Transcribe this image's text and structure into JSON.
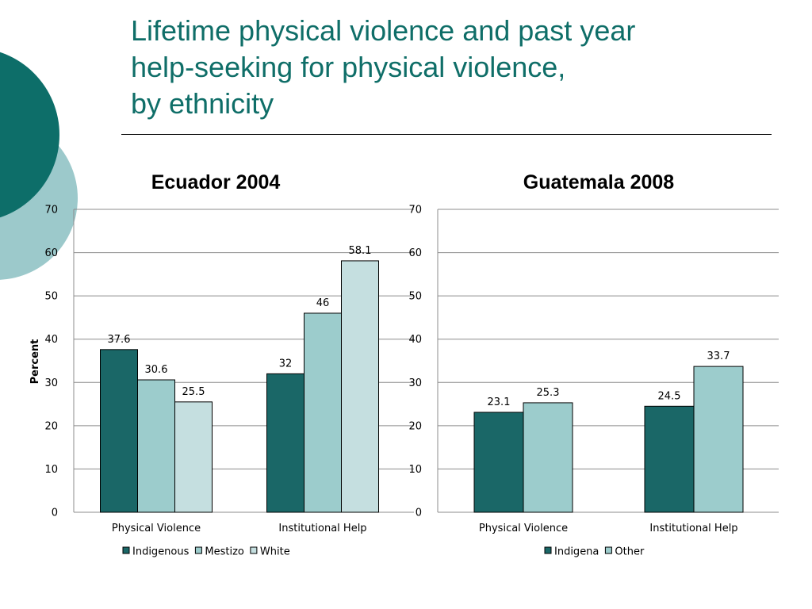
{
  "slide": {
    "title_lines": [
      "Lifetime physical violence and past year",
      "help-seeking for physical violence,",
      "by ethnicity"
    ]
  },
  "colors": {
    "title": "#0f6e68",
    "circle_dark": "#0d6e69",
    "circle_light": "#9cc9cb",
    "series_dark": "#1a6767",
    "series_mid": "#9ccccc",
    "series_light": "#c5dfe0"
  },
  "chart_data": [
    {
      "type": "bar",
      "title": "Ecuador 2004",
      "ylabel": "Percent",
      "xlabel": "",
      "ylim": [
        0,
        70
      ],
      "yticks": [
        0,
        10,
        20,
        30,
        40,
        50,
        60,
        70
      ],
      "grid": true,
      "legend_position": "bottom",
      "categories": [
        "Physical Violence",
        "Institutional Help"
      ],
      "series": [
        {
          "name": "Indigenous",
          "values": [
            37.6,
            32
          ],
          "labels": [
            "37.6",
            "32"
          ],
          "color": "#1a6767"
        },
        {
          "name": "Mestizo",
          "values": [
            30.6,
            46
          ],
          "labels": [
            "30.6",
            "46"
          ],
          "color": "#9ccccc"
        },
        {
          "name": "White",
          "values": [
            25.5,
            58.1
          ],
          "labels": [
            "25.5",
            "58.1"
          ],
          "color": "#c5dfe0"
        }
      ]
    },
    {
      "type": "bar",
      "title": "Guatemala 2008",
      "ylabel": "",
      "xlabel": "",
      "ylim": [
        0,
        70
      ],
      "yticks": [
        0,
        10,
        20,
        30,
        40,
        50,
        60,
        70
      ],
      "grid": true,
      "legend_position": "bottom",
      "categories": [
        "Physical Violence",
        "Institutional Help"
      ],
      "series": [
        {
          "name": "Indigena",
          "values": [
            23.1,
            24.5
          ],
          "labels": [
            "23.1",
            "24.5"
          ],
          "color": "#1a6767"
        },
        {
          "name": "Other",
          "values": [
            25.3,
            33.7
          ],
          "labels": [
            "25.3",
            "33.7"
          ],
          "color": "#9ccccc"
        }
      ]
    }
  ]
}
